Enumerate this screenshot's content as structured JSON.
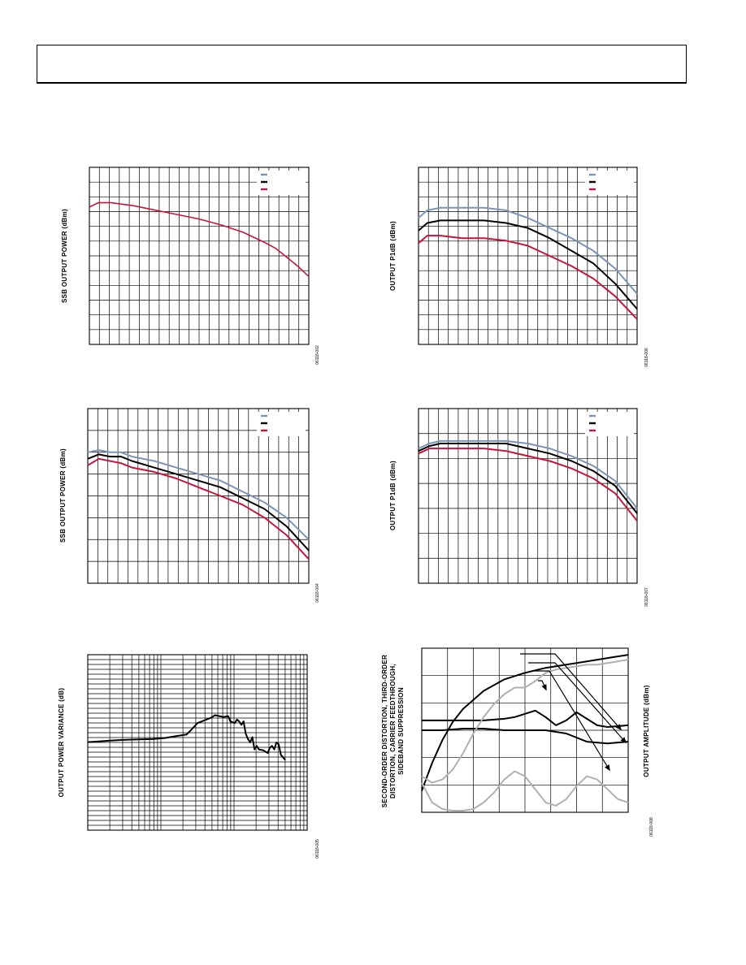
{
  "colors": {
    "series_a": "#7a93b8",
    "series_b": "#000000",
    "series_c": "#c4163a",
    "grey": "#b0b0b0",
    "grid": "#000000"
  },
  "chart_data": [
    {
      "type": "line",
      "ylabel": "SSB OUTPUT POWER (dBm)",
      "fig_id": "06118-002",
      "grid": true,
      "legend": "top-right",
      "xlim": [
        0,
        1
      ],
      "ylim": [
        0,
        12
      ],
      "series": [
        {
          "color": "#c4163a",
          "x": [
            0,
            0.04,
            0.1,
            0.15,
            0.2,
            0.3,
            0.4,
            0.5,
            0.6,
            0.7,
            0.8,
            0.85,
            0.9,
            0.95,
            1.0
          ],
          "y": [
            9.3,
            9.6,
            9.6,
            9.5,
            9.4,
            9.1,
            8.8,
            8.5,
            8.1,
            7.6,
            6.9,
            6.5,
            5.9,
            5.3,
            4.6
          ]
        }
      ]
    },
    {
      "type": "line",
      "ylabel": "OUTPUT P1dB (dBm)",
      "fig_id": "06118-006",
      "grid": true,
      "legend": "top-right",
      "xlim": [
        0,
        1
      ],
      "ylim": [
        0,
        7
      ],
      "series": [
        {
          "color": "#7a93b8",
          "x": [
            0,
            0.04,
            0.1,
            0.2,
            0.3,
            0.4,
            0.5,
            0.6,
            0.7,
            0.8,
            0.9,
            1.0
          ],
          "y": [
            5.0,
            5.3,
            5.4,
            5.4,
            5.4,
            5.3,
            5.0,
            4.6,
            4.2,
            3.7,
            3.0,
            2.0
          ]
        },
        {
          "color": "#000000",
          "x": [
            0,
            0.04,
            0.1,
            0.2,
            0.3,
            0.4,
            0.5,
            0.6,
            0.7,
            0.8,
            0.9,
            1.0
          ],
          "y": [
            4.5,
            4.8,
            4.9,
            4.9,
            4.9,
            4.8,
            4.6,
            4.2,
            3.7,
            3.2,
            2.4,
            1.4
          ]
        },
        {
          "color": "#c4163a",
          "x": [
            0,
            0.04,
            0.1,
            0.2,
            0.3,
            0.4,
            0.5,
            0.6,
            0.7,
            0.8,
            0.9,
            1.0
          ],
          "y": [
            4.0,
            4.3,
            4.3,
            4.2,
            4.2,
            4.1,
            3.9,
            3.5,
            3.1,
            2.6,
            1.9,
            1.0
          ]
        }
      ]
    },
    {
      "type": "line",
      "ylabel": "SSB OUTPUT POWER (dBm)",
      "fig_id": "06118-004",
      "grid": true,
      "legend": "top-right",
      "xlim": [
        0,
        1
      ],
      "ylim": [
        0,
        8
      ],
      "series": [
        {
          "color": "#7a93b8",
          "x": [
            0,
            0.05,
            0.1,
            0.15,
            0.2,
            0.3,
            0.4,
            0.5,
            0.6,
            0.7,
            0.8,
            0.9,
            1.0
          ],
          "y": [
            6.0,
            6.1,
            6.0,
            6.0,
            5.8,
            5.6,
            5.3,
            5.0,
            4.7,
            4.2,
            3.7,
            3.0,
            2.0
          ]
        },
        {
          "color": "#000000",
          "x": [
            0,
            0.05,
            0.1,
            0.15,
            0.2,
            0.3,
            0.4,
            0.5,
            0.6,
            0.7,
            0.8,
            0.9,
            1.0
          ],
          "y": [
            5.7,
            5.9,
            5.8,
            5.8,
            5.6,
            5.3,
            5.0,
            4.7,
            4.4,
            3.9,
            3.4,
            2.6,
            1.5
          ]
        },
        {
          "color": "#c4163a",
          "x": [
            0,
            0.05,
            0.1,
            0.15,
            0.2,
            0.3,
            0.4,
            0.5,
            0.6,
            0.7,
            0.8,
            0.9,
            1.0
          ],
          "y": [
            5.4,
            5.7,
            5.6,
            5.5,
            5.3,
            5.1,
            4.8,
            4.4,
            4.0,
            3.6,
            3.0,
            2.2,
            1.1
          ]
        }
      ]
    },
    {
      "type": "line",
      "ylabel": "OUTPUT P1dB (dBm)",
      "fig_id": "06118-007",
      "grid": true,
      "legend": "top-right",
      "xlim": [
        0,
        1
      ],
      "ylim": [
        0,
        7
      ],
      "series": [
        {
          "color": "#7a93b8",
          "x": [
            0,
            0.05,
            0.1,
            0.2,
            0.3,
            0.4,
            0.5,
            0.6,
            0.7,
            0.8,
            0.9,
            1.0
          ],
          "y": [
            5.4,
            5.6,
            5.7,
            5.7,
            5.7,
            5.7,
            5.6,
            5.4,
            5.1,
            4.7,
            4.1,
            3.0
          ]
        },
        {
          "color": "#000000",
          "x": [
            0,
            0.05,
            0.1,
            0.2,
            0.3,
            0.4,
            0.5,
            0.6,
            0.7,
            0.8,
            0.9,
            1.0
          ],
          "y": [
            5.3,
            5.5,
            5.6,
            5.6,
            5.6,
            5.6,
            5.4,
            5.2,
            4.9,
            4.5,
            3.9,
            2.8
          ]
        },
        {
          "color": "#c4163a",
          "x": [
            0,
            0.05,
            0.1,
            0.2,
            0.3,
            0.4,
            0.5,
            0.6,
            0.7,
            0.8,
            0.9,
            1.0
          ],
          "y": [
            5.2,
            5.4,
            5.4,
            5.4,
            5.4,
            5.3,
            5.1,
            4.9,
            4.6,
            4.2,
            3.6,
            2.5
          ]
        }
      ]
    },
    {
      "type": "line",
      "ylabel": "OUTPUT POWER VARIANCE (dB)",
      "fig_id": "06118-005",
      "grid": true,
      "xlim": [
        0,
        1
      ],
      "ylim": [
        0,
        1
      ],
      "series": [
        {
          "color": "#000000",
          "x": [
            0,
            0.05,
            0.1,
            0.15,
            0.2,
            0.25,
            0.3,
            0.35,
            0.4,
            0.45,
            0.47,
            0.5,
            0.53,
            0.56,
            0.58,
            0.6,
            0.62,
            0.64,
            0.65,
            0.67,
            0.68,
            0.69,
            0.7,
            0.71,
            0.72,
            0.73,
            0.74,
            0.75,
            0.76,
            0.77,
            0.78,
            0.8,
            0.82,
            0.83,
            0.84,
            0.85,
            0.86,
            0.87,
            0.88,
            0.9
          ],
          "y": [
            0.502,
            0.506,
            0.51,
            0.514,
            0.516,
            0.518,
            0.52,
            0.525,
            0.535,
            0.545,
            0.57,
            0.61,
            0.625,
            0.64,
            0.655,
            0.65,
            0.645,
            0.65,
            0.62,
            0.61,
            0.63,
            0.62,
            0.6,
            0.62,
            0.55,
            0.52,
            0.5,
            0.53,
            0.46,
            0.48,
            0.46,
            0.455,
            0.44,
            0.47,
            0.48,
            0.46,
            0.5,
            0.49,
            0.43,
            0.4
          ]
        }
      ]
    },
    {
      "type": "line",
      "ylabel": "SECOND-ORDER DISTORTION, THIRD-ORDER DISTORTION, CARRIER FEEDTHROUGH, SIDEBAND SUPPRESSION",
      "ylabel_right": "OUTPUT AMPLITUDE (dBm)",
      "fig_id": "06118-008",
      "grid": true,
      "xlim": [
        0,
        1
      ],
      "ylim": [
        0,
        1
      ],
      "series": [
        {
          "color": "#000000",
          "x": [
            0,
            0.05,
            0.1,
            0.15,
            0.2,
            0.3,
            0.4,
            0.5,
            0.6,
            0.7,
            0.8,
            0.9,
            1.0
          ],
          "y": [
            0.13,
            0.3,
            0.44,
            0.55,
            0.63,
            0.74,
            0.81,
            0.85,
            0.88,
            0.9,
            0.92,
            0.94,
            0.96
          ]
        },
        {
          "color": "#000000",
          "x": [
            0,
            0.1,
            0.2,
            0.3,
            0.4,
            0.45,
            0.5,
            0.55,
            0.6,
            0.65,
            0.7,
            0.75,
            0.8,
            0.85,
            0.9,
            1.0
          ],
          "y": [
            0.56,
            0.56,
            0.56,
            0.56,
            0.57,
            0.58,
            0.6,
            0.62,
            0.58,
            0.53,
            0.56,
            0.61,
            0.57,
            0.53,
            0.52,
            0.53
          ]
        },
        {
          "color": "#000000",
          "x": [
            0,
            0.1,
            0.2,
            0.3,
            0.4,
            0.5,
            0.6,
            0.7,
            0.8,
            0.9,
            1.0
          ],
          "y": [
            0.5,
            0.5,
            0.51,
            0.51,
            0.5,
            0.5,
            0.5,
            0.48,
            0.43,
            0.42,
            0.43
          ]
        },
        {
          "color": "#b0b0b0",
          "x": [
            0,
            0.05,
            0.1,
            0.15,
            0.2,
            0.25,
            0.3,
            0.35,
            0.4,
            0.45,
            0.5,
            0.55,
            0.6,
            0.65,
            0.7,
            0.75,
            0.8,
            0.85,
            0.9,
            0.95,
            1.0
          ],
          "y": [
            0.22,
            0.18,
            0.2,
            0.26,
            0.36,
            0.48,
            0.58,
            0.66,
            0.72,
            0.76,
            0.76,
            0.8,
            0.85,
            0.87,
            0.88,
            0.89,
            0.9,
            0.9,
            0.91,
            0.92,
            0.93
          ]
        },
        {
          "color": "#b0b0b0",
          "x": [
            0,
            0.05,
            0.1,
            0.15,
            0.2,
            0.25,
            0.3,
            0.35,
            0.4,
            0.45,
            0.5,
            0.55,
            0.6,
            0.65,
            0.7,
            0.75,
            0.8,
            0.85,
            0.9,
            0.95,
            1.0
          ],
          "y": [
            0.18,
            0.06,
            0.02,
            0.01,
            0.01,
            0.02,
            0.06,
            0.12,
            0.2,
            0.25,
            0.22,
            0.14,
            0.06,
            0.04,
            0.08,
            0.16,
            0.22,
            0.2,
            0.14,
            0.08,
            0.06
          ]
        }
      ]
    }
  ]
}
